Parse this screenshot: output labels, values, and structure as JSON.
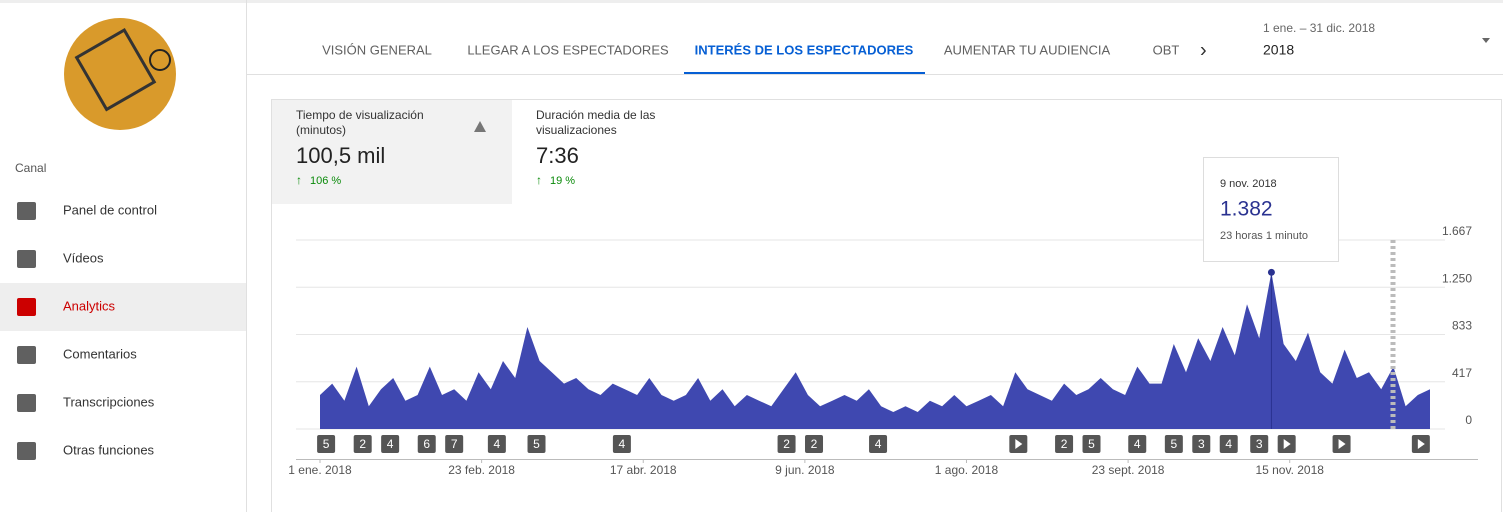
{
  "sidebar": {
    "section": "Canal",
    "menu": [
      "Panel de control",
      "Vídeos",
      "Analytics",
      "Comentarios",
      "Transcripciones",
      "Otras funciones"
    ],
    "active": 2
  },
  "tabs": {
    "items": [
      "VISIÓN GENERAL",
      "LLEGAR A LOS ESPECTADORES",
      "INTERÉS DE LOS ESPECTADORES",
      "AUMENTAR TU AUDIENCIA",
      "OBT"
    ],
    "active": 2
  },
  "date_range": {
    "range": "1 ene. – 31 dic. 2018",
    "selection": "2018"
  },
  "metrics": [
    {
      "label": "Tiempo de visualización (minutos)",
      "value": "100,5 mil",
      "change": "106 %"
    },
    {
      "label": "Duración media de las visualizaciones",
      "value": "7:36",
      "change": "19 %"
    }
  ],
  "chart_data": {
    "type": "area",
    "color": "#3f48b0",
    "values": [
      300,
      400,
      250,
      550,
      200,
      350,
      450,
      250,
      300,
      550,
      300,
      350,
      250,
      500,
      350,
      600,
      450,
      900,
      600,
      500,
      400,
      450,
      350,
      300,
      400,
      350,
      300,
      450,
      300,
      250,
      300,
      450,
      250,
      350,
      200,
      300,
      250,
      200,
      350,
      500,
      300,
      200,
      250,
      300,
      250,
      350,
      200,
      150,
      200,
      150,
      250,
      200,
      300,
      200,
      250,
      300,
      200,
      500,
      350,
      300,
      250,
      400,
      300,
      350,
      450,
      350,
      300,
      550,
      400,
      400,
      750,
      500,
      800,
      600,
      900,
      650,
      1100,
      800,
      1382,
      750,
      600,
      850,
      500,
      400,
      700,
      450,
      500,
      350,
      550,
      200,
      300,
      350
    ],
    "xlim": [
      0,
      364
    ],
    "xticks": [
      {
        "value": 0,
        "label": "1 ene. 2018"
      },
      {
        "value": 53,
        "label": "23 feb. 2018"
      },
      {
        "value": 106,
        "label": "17 abr. 2018"
      },
      {
        "value": 159,
        "label": "9 jun. 2018"
      },
      {
        "value": 212,
        "label": "1 ago. 2018"
      },
      {
        "value": 265,
        "label": "23 sept. 2018"
      },
      {
        "value": 318,
        "label": "15 nov. 2018"
      }
    ],
    "ylim": [
      0,
      1667
    ],
    "yticks": [
      0,
      417,
      833,
      {
        "value": 1250,
        "label": "1.250"
      },
      {
        "value": 1667,
        "label": "1.667"
      }
    ],
    "grid": true,
    "tooltip": {
      "index": 78,
      "date": "9 nov. 2018",
      "value_label": "1.382",
      "detail": "23 horas 1 minuto"
    },
    "markers": [
      {
        "x": 2,
        "count": 5
      },
      {
        "x": 14,
        "count": 2
      },
      {
        "x": 23,
        "count": 4
      },
      {
        "x": 35,
        "count": 6
      },
      {
        "x": 44,
        "count": 7
      },
      {
        "x": 58,
        "count": 4
      },
      {
        "x": 71,
        "count": 5
      },
      {
        "x": 99,
        "count": 4
      },
      {
        "x": 153,
        "count": 2
      },
      {
        "x": 162,
        "count": 2
      },
      {
        "x": 183,
        "count": 4
      },
      {
        "x": 229
      },
      {
        "x": 244,
        "count": 2
      },
      {
        "x": 253,
        "count": 5
      },
      {
        "x": 268,
        "count": 4
      },
      {
        "x": 280,
        "count": 5
      },
      {
        "x": 289,
        "count": 3
      },
      {
        "x": 298,
        "count": 4
      },
      {
        "x": 308,
        "count": 3
      },
      {
        "x": 317
      },
      {
        "x": 335
      },
      {
        "x": 361
      }
    ]
  }
}
